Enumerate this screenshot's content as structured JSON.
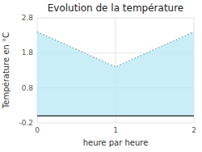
{
  "chart_data": {
    "type": "area",
    "title": "Evolution de la température",
    "x_label": "heure par heure",
    "y_label": "Température en °C",
    "x": [
      0,
      1,
      2
    ],
    "values": [
      2.4,
      1.4,
      2.4
    ],
    "baseline": 0,
    "color": "#b8e8f5",
    "line_style": "dotted",
    "xlim": [
      0,
      2
    ],
    "ylim": [
      -0.2,
      2.8
    ],
    "xticks": [
      0,
      1,
      2
    ],
    "yticks": [
      -0.2,
      0.8,
      1.8,
      2.8
    ],
    "grid": true
  }
}
